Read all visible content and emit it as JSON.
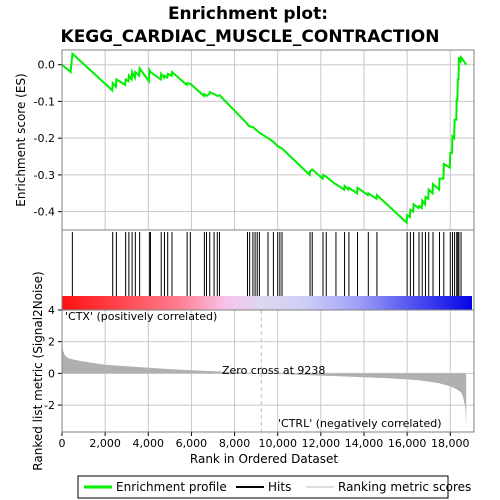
{
  "chart_data": {
    "type": "line",
    "title_line1": "Enrichment plot:",
    "title_line2": "KEGG_CARDIAC_MUSCLE_CONTRACTION",
    "ylabel_top": "Enrichment score (ES)",
    "ylabel_bottom": "Ranked list metric (Signal2Noise)",
    "xlabel": "Rank in Ordered Dataset",
    "es_yticks": [
      "0.0",
      "-0.1",
      "-0.2",
      "-0.3",
      "-0.4"
    ],
    "es_ytick_values": [
      0.0,
      -0.1,
      -0.2,
      -0.3,
      -0.4
    ],
    "es_ylim": [
      -0.45,
      0.04
    ],
    "metric_yticks": [
      "4",
      "2",
      "0",
      "-2"
    ],
    "metric_ytick_values": [
      4,
      2,
      0,
      -2
    ],
    "metric_ylim": [
      -3.7,
      4.0
    ],
    "xticks": [
      "0",
      "2,000",
      "4,000",
      "6,000",
      "8,000",
      "10,000",
      "12,000",
      "14,000",
      "16,000",
      "18,000"
    ],
    "xtick_values": [
      0,
      2000,
      4000,
      6000,
      8000,
      10000,
      12000,
      14000,
      16000,
      18000
    ],
    "xlim": [
      0,
      19100
    ],
    "n_genes": 18738,
    "zero_cross": 9238,
    "zero_cross_label": "Zero cross at 9238",
    "pos_label": "'CTX' (positively correlated)",
    "neg_label": "'CTRL' (negatively correlated)",
    "hits": [
      480,
      2350,
      2520,
      2950,
      3100,
      3250,
      3400,
      3600,
      4050,
      4100,
      4600,
      4750,
      4900,
      5100,
      5800,
      5950,
      6600,
      6700,
      6850,
      7050,
      7200,
      7300,
      8600,
      8700,
      8850,
      8950,
      9050,
      9150,
      9550,
      9800,
      10000,
      10100,
      10200,
      11500,
      11600,
      12100,
      12250,
      12700,
      13100,
      13300,
      13700,
      14200,
      14600,
      16000,
      16150,
      16300,
      16550,
      16700,
      16850,
      17000,
      17200,
      17500,
      17700,
      18000,
      18100,
      18200,
      18300,
      18350,
      18400,
      18500
    ],
    "es_series": {
      "x": [
        0,
        400,
        480,
        2330,
        2350,
        2500,
        2520,
        2930,
        2950,
        3080,
        3100,
        3230,
        3250,
        3380,
        3400,
        3580,
        3600,
        4030,
        4050,
        4100,
        4580,
        4600,
        4730,
        4750,
        4880,
        4900,
        5080,
        5100,
        5780,
        5800,
        5950,
        6580,
        6600,
        6700,
        6830,
        6850,
        7050,
        7200,
        7300,
        8580,
        8600,
        8700,
        8850,
        8950,
        9050,
        9150,
        9550,
        9800,
        10000,
        10100,
        10200,
        11480,
        11500,
        11600,
        12080,
        12100,
        12250,
        12680,
        12700,
        13080,
        13100,
        13280,
        13300,
        13680,
        13700,
        14180,
        14200,
        14580,
        14600,
        15980,
        16000,
        16130,
        16150,
        16280,
        16300,
        16530,
        16550,
        16680,
        16700,
        16830,
        16850,
        16980,
        17000,
        17180,
        17200,
        17480,
        17500,
        17680,
        17700,
        17980,
        18000,
        18080,
        18100,
        18180,
        18200,
        18280,
        18300,
        18330,
        18350,
        18380,
        18400,
        18480,
        18500,
        18738
      ],
      "y": [
        0.0,
        -0.02,
        0.03,
        -0.07,
        -0.05,
        -0.06,
        -0.04,
        -0.055,
        -0.04,
        -0.045,
        -0.03,
        -0.04,
        -0.02,
        -0.035,
        -0.02,
        -0.03,
        -0.01,
        -0.045,
        -0.015,
        -0.02,
        -0.04,
        -0.025,
        -0.035,
        -0.03,
        -0.035,
        -0.025,
        -0.03,
        -0.02,
        -0.055,
        -0.05,
        -0.052,
        -0.085,
        -0.08,
        -0.085,
        -0.08,
        -0.075,
        -0.08,
        -0.085,
        -0.083,
        -0.16,
        -0.163,
        -0.168,
        -0.17,
        -0.175,
        -0.18,
        -0.185,
        -0.2,
        -0.21,
        -0.222,
        -0.225,
        -0.228,
        -0.3,
        -0.29,
        -0.285,
        -0.31,
        -0.3,
        -0.305,
        -0.325,
        -0.325,
        -0.34,
        -0.33,
        -0.34,
        -0.335,
        -0.35,
        -0.335,
        -0.355,
        -0.35,
        -0.365,
        -0.355,
        -0.43,
        -0.41,
        -0.415,
        -0.395,
        -0.4,
        -0.38,
        -0.39,
        -0.385,
        -0.39,
        -0.37,
        -0.38,
        -0.36,
        -0.365,
        -0.34,
        -0.35,
        -0.325,
        -0.34,
        -0.31,
        -0.31,
        -0.27,
        -0.28,
        -0.24,
        -0.24,
        -0.195,
        -0.2,
        -0.15,
        -0.15,
        -0.095,
        -0.095,
        -0.04,
        -0.04,
        0.02,
        0.01,
        0.02,
        0.0
      ]
    },
    "metric_series": {
      "x": [
        0,
        50,
        150,
        300,
        600,
        1000,
        1500,
        2000,
        3000,
        4000,
        5000,
        6000,
        7000,
        8000,
        9238,
        10000,
        11000,
        12000,
        13000,
        14000,
        15000,
        16000,
        16500,
        17000,
        17500,
        18000,
        18300,
        18500,
        18600,
        18700,
        18738
      ],
      "y": [
        1.9,
        1.4,
        1.1,
        0.95,
        0.85,
        0.75,
        0.65,
        0.55,
        0.45,
        0.35,
        0.27,
        0.2,
        0.14,
        0.08,
        0.0,
        -0.04,
        -0.09,
        -0.14,
        -0.19,
        -0.24,
        -0.3,
        -0.38,
        -0.44,
        -0.52,
        -0.63,
        -0.82,
        -1.0,
        -1.2,
        -1.5,
        -2.2,
        -3.5
      ]
    },
    "legend": [
      "Enrichment profile",
      "Hits",
      "Ranking metric scores"
    ],
    "colors": {
      "es_line": "#00ee00",
      "hits": "#000000",
      "metric_fill": "#b0b0b0",
      "zero_line": "#c0c0c0",
      "pos_label": "#ff0000",
      "neg_label": "#0000ff",
      "bar_red": "#ff0000",
      "bar_blue": "#0000ff",
      "grid": "#c8c8c8"
    }
  }
}
